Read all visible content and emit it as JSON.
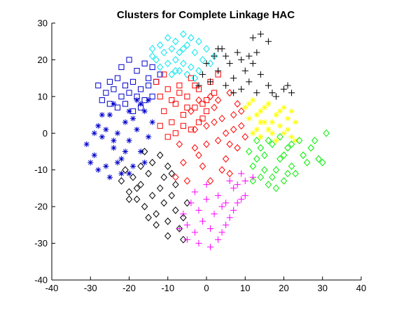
{
  "chart_data": {
    "type": "scatter",
    "title": "Clusters for Complete Linkage HAC",
    "xlabel": "",
    "ylabel": "",
    "xlim": [
      -40,
      40
    ],
    "ylim": [
      -40,
      30
    ],
    "x_ticks": [
      -40,
      -30,
      -20,
      -10,
      0,
      10,
      20,
      30,
      40
    ],
    "y_ticks": [
      -40,
      -30,
      -20,
      -10,
      0,
      10,
      20,
      30
    ],
    "grid": false,
    "legend": "none",
    "clusters": [
      {
        "color": "#00e5ee",
        "marker": "diamond",
        "points": [
          [
            -14,
            21
          ],
          [
            -12,
            24
          ],
          [
            -10,
            26
          ],
          [
            -8,
            25
          ],
          [
            -6,
            27
          ],
          [
            -4,
            26
          ],
          [
            -2,
            25
          ],
          [
            0,
            23
          ],
          [
            2,
            21
          ],
          [
            -13,
            20
          ],
          [
            -11,
            22
          ],
          [
            -9,
            23
          ],
          [
            -7,
            22
          ],
          [
            -5,
            24
          ],
          [
            -3,
            22
          ],
          [
            -1,
            20
          ],
          [
            1,
            19
          ],
          [
            -12,
            18
          ],
          [
            -10,
            19
          ],
          [
            -8,
            20
          ],
          [
            -6,
            19
          ],
          [
            -4,
            18
          ],
          [
            -2,
            17
          ],
          [
            -9,
            16
          ],
          [
            -7,
            17
          ],
          [
            -5,
            16
          ],
          [
            -3,
            15
          ],
          [
            -14,
            23
          ],
          [
            -6,
            23
          ],
          [
            -8,
            17
          ]
        ]
      },
      {
        "color": "#0000cc",
        "marker": "square",
        "points": [
          [
            -22,
            18
          ],
          [
            -20,
            20
          ],
          [
            -18,
            17
          ],
          [
            -16,
            19
          ],
          [
            -14,
            18
          ],
          [
            -25,
            14
          ],
          [
            -23,
            15
          ],
          [
            -21,
            13
          ],
          [
            -19,
            14
          ],
          [
            -17,
            12
          ],
          [
            -15,
            13
          ],
          [
            -13,
            14
          ],
          [
            -26,
            11
          ],
          [
            -24,
            12
          ],
          [
            -22,
            10
          ],
          [
            -20,
            11
          ],
          [
            -18,
            10
          ],
          [
            -16,
            9
          ],
          [
            -14,
            10
          ],
          [
            -27,
            9
          ],
          [
            -25,
            8
          ],
          [
            -23,
            7
          ],
          [
            -21,
            8
          ],
          [
            -19,
            6
          ],
          [
            -17,
            7
          ],
          [
            -15,
            15
          ],
          [
            -12,
            16
          ],
          [
            -28,
            13
          ]
        ]
      },
      {
        "color": "#0000cc",
        "marker": "asterisk",
        "points": [
          [
            -31,
            -3
          ],
          [
            -29,
            -6
          ],
          [
            -28,
            2
          ],
          [
            -27,
            -1
          ],
          [
            -26,
            -9
          ],
          [
            -25,
            5
          ],
          [
            -24,
            -4
          ],
          [
            -23,
            0
          ],
          [
            -22,
            -7
          ],
          [
            -21,
            3
          ],
          [
            -20,
            -2
          ],
          [
            -19,
            -9
          ],
          [
            -18,
            1
          ],
          [
            -17,
            -5
          ],
          [
            -16,
            6
          ],
          [
            -15,
            -1
          ],
          [
            -14,
            3
          ],
          [
            -28,
            -10
          ],
          [
            -25,
            -12
          ],
          [
            -22,
            -11
          ],
          [
            -20,
            6
          ],
          [
            -18,
            9
          ],
          [
            -16,
            -8
          ],
          [
            -24,
            8
          ],
          [
            -26,
            1
          ],
          [
            -30,
            -8
          ],
          [
            -21,
            -5
          ],
          [
            -19,
            4
          ],
          [
            -17,
            8
          ],
          [
            -23,
            -8
          ],
          [
            -27,
            5
          ],
          [
            -15,
            9
          ],
          [
            -20,
            -11
          ],
          [
            -24,
            -2
          ],
          [
            -29,
            0
          ]
        ]
      },
      {
        "color": "#000000",
        "marker": "diamond",
        "points": [
          [
            -22,
            -13
          ],
          [
            -20,
            -16
          ],
          [
            -19,
            -12
          ],
          [
            -18,
            -18
          ],
          [
            -17,
            -14
          ],
          [
            -16,
            -20
          ],
          [
            -15,
            -11
          ],
          [
            -14,
            -17
          ],
          [
            -13,
            -22
          ],
          [
            -12,
            -15
          ],
          [
            -11,
            -19
          ],
          [
            -10,
            -24
          ],
          [
            -9,
            -17
          ],
          [
            -8,
            -21
          ],
          [
            -7,
            -26
          ],
          [
            -6,
            -23
          ],
          [
            -5,
            -19
          ],
          [
            -14,
            -8
          ],
          [
            -12,
            -6
          ],
          [
            -10,
            -9
          ],
          [
            -16,
            -5
          ],
          [
            -11,
            -12
          ],
          [
            -20,
            -18
          ],
          [
            -18,
            -15
          ],
          [
            -8,
            -14
          ],
          [
            -13,
            -25
          ],
          [
            -10,
            -28
          ],
          [
            -6,
            -29
          ],
          [
            -17,
            -9
          ],
          [
            -15,
            -23
          ],
          [
            -9,
            -11
          ],
          [
            -21,
            -10
          ]
        ]
      },
      {
        "color": "#ff0000",
        "marker": "square",
        "points": [
          [
            -13,
            14
          ],
          [
            -12,
            10
          ],
          [
            -11,
            6
          ],
          [
            -10,
            12
          ],
          [
            -9,
            3
          ],
          [
            -8,
            8
          ],
          [
            -7,
            13
          ],
          [
            -6,
            5
          ],
          [
            -5,
            10
          ],
          [
            -4,
            15
          ],
          [
            -3,
            7
          ],
          [
            -2,
            12
          ],
          [
            -1,
            4
          ],
          [
            0,
            9
          ],
          [
            1,
            14
          ],
          [
            -12,
            2
          ],
          [
            -10,
            -1
          ],
          [
            -8,
            0
          ],
          [
            -6,
            2
          ],
          [
            -4,
            1
          ],
          [
            -2,
            3
          ],
          [
            0,
            6
          ],
          [
            2,
            11
          ],
          [
            3,
            16
          ],
          [
            -11,
            16
          ],
          [
            -9,
            9
          ],
          [
            -7,
            11
          ],
          [
            -5,
            7
          ],
          [
            -3,
            13
          ],
          [
            -1,
            8
          ]
        ]
      },
      {
        "color": "#ff0000",
        "marker": "diamond",
        "points": [
          [
            -4,
            6
          ],
          [
            -3,
            -4
          ],
          [
            -2,
            9
          ],
          [
            -1,
            -9
          ],
          [
            0,
            2
          ],
          [
            1,
            -13
          ],
          [
            2,
            7
          ],
          [
            3,
            -2
          ],
          [
            4,
            4
          ],
          [
            5,
            -7
          ],
          [
            6,
            11
          ],
          [
            7,
            1
          ],
          [
            8,
            -4
          ],
          [
            9,
            6
          ],
          [
            10,
            -1
          ],
          [
            0,
            -3
          ],
          [
            2,
            3
          ],
          [
            4,
            -10
          ],
          [
            6,
            -3
          ],
          [
            8,
            8
          ],
          [
            -6,
            -8
          ],
          [
            -8,
            -12
          ],
          [
            -5,
            -13
          ],
          [
            -2,
            -6
          ],
          [
            3,
            9
          ],
          [
            5,
            0
          ],
          [
            7,
            5
          ],
          [
            1,
            10
          ],
          [
            -3,
            1
          ],
          [
            9,
            2
          ],
          [
            6,
            -11
          ],
          [
            -7,
            -3
          ]
        ]
      },
      {
        "color": "#000000",
        "marker": "plus",
        "points": [
          [
            -1,
            16
          ],
          [
            0,
            19
          ],
          [
            1,
            14
          ],
          [
            2,
            21
          ],
          [
            3,
            17
          ],
          [
            4,
            23
          ],
          [
            5,
            13
          ],
          [
            6,
            19
          ],
          [
            7,
            15
          ],
          [
            8,
            22
          ],
          [
            9,
            12
          ],
          [
            10,
            17
          ],
          [
            11,
            14
          ],
          [
            12,
            19
          ],
          [
            13,
            11
          ],
          [
            14,
            16
          ],
          [
            16,
            13
          ],
          [
            18,
            10
          ],
          [
            20,
            12
          ],
          [
            22,
            11
          ],
          [
            12,
            26
          ],
          [
            14,
            27
          ],
          [
            16,
            25
          ],
          [
            7,
            11
          ],
          [
            5,
            21
          ],
          [
            3,
            23
          ],
          [
            -2,
            13
          ],
          [
            9,
            20
          ],
          [
            11,
            21
          ],
          [
            13,
            22
          ],
          [
            17,
            11
          ],
          [
            21,
            13
          ]
        ]
      },
      {
        "color": "#ffff00",
        "marker": "asterisk",
        "points": [
          [
            10,
            7
          ],
          [
            11,
            4
          ],
          [
            12,
            9
          ],
          [
            13,
            1
          ],
          [
            14,
            6
          ],
          [
            15,
            3
          ],
          [
            16,
            8
          ],
          [
            17,
            0
          ],
          [
            18,
            5
          ],
          [
            19,
            2
          ],
          [
            20,
            7
          ],
          [
            21,
            4
          ],
          [
            22,
            -1
          ],
          [
            23,
            3
          ],
          [
            12,
            0
          ],
          [
            14,
            -1
          ],
          [
            16,
            1
          ],
          [
            18,
            -2
          ],
          [
            20,
            0
          ],
          [
            22,
            6
          ],
          [
            11,
            8
          ],
          [
            13,
            5
          ],
          [
            15,
            7
          ],
          [
            17,
            3
          ],
          [
            19,
            6
          ],
          [
            21,
            1
          ],
          [
            23,
            -2
          ],
          [
            14,
            3
          ]
        ]
      },
      {
        "color": "#00ee00",
        "marker": "diamond",
        "points": [
          [
            11,
            -5
          ],
          [
            12,
            -9
          ],
          [
            13,
            -2
          ],
          [
            14,
            -12
          ],
          [
            15,
            -6
          ],
          [
            16,
            -14
          ],
          [
            17,
            -3
          ],
          [
            18,
            -10
          ],
          [
            19,
            -7
          ],
          [
            20,
            -13
          ],
          [
            21,
            -4
          ],
          [
            22,
            -9
          ],
          [
            23,
            -11
          ],
          [
            24,
            -2
          ],
          [
            25,
            -6
          ],
          [
            26,
            -8
          ],
          [
            27,
            -4
          ],
          [
            28,
            -2
          ],
          [
            29,
            -7
          ],
          [
            30,
            -8
          ],
          [
            31,
            0
          ],
          [
            13,
            -7
          ],
          [
            15,
            -10
          ],
          [
            17,
            -12
          ],
          [
            19,
            -1
          ],
          [
            21,
            -11
          ],
          [
            12,
            -13
          ],
          [
            14,
            -4
          ],
          [
            16,
            -2
          ],
          [
            18,
            -15
          ],
          [
            20,
            -6
          ],
          [
            22,
            -3
          ]
        ]
      },
      {
        "color": "#ff00ff",
        "marker": "plus",
        "points": [
          [
            -6,
            -22
          ],
          [
            -5,
            -25
          ],
          [
            -4,
            -19
          ],
          [
            -3,
            -27
          ],
          [
            -2,
            -21
          ],
          [
            -1,
            -24
          ],
          [
            0,
            -18
          ],
          [
            1,
            -26
          ],
          [
            2,
            -22
          ],
          [
            3,
            -29
          ],
          [
            4,
            -20
          ],
          [
            5,
            -25
          ],
          [
            6,
            -23
          ],
          [
            7,
            -21
          ],
          [
            8,
            -19
          ],
          [
            9,
            -18
          ],
          [
            -7,
            -26
          ],
          [
            -5,
            -29
          ],
          [
            -2,
            -30
          ],
          [
            1,
            -31
          ],
          [
            4,
            -27
          ],
          [
            6,
            -13
          ],
          [
            8,
            -14
          ],
          [
            10,
            -13
          ],
          [
            12,
            -12
          ],
          [
            9,
            -11
          ],
          [
            7,
            -15
          ],
          [
            10,
            -17
          ],
          [
            -3,
            -16
          ],
          [
            0,
            -14
          ],
          [
            3,
            -17
          ],
          [
            5,
            -19
          ]
        ]
      }
    ]
  }
}
